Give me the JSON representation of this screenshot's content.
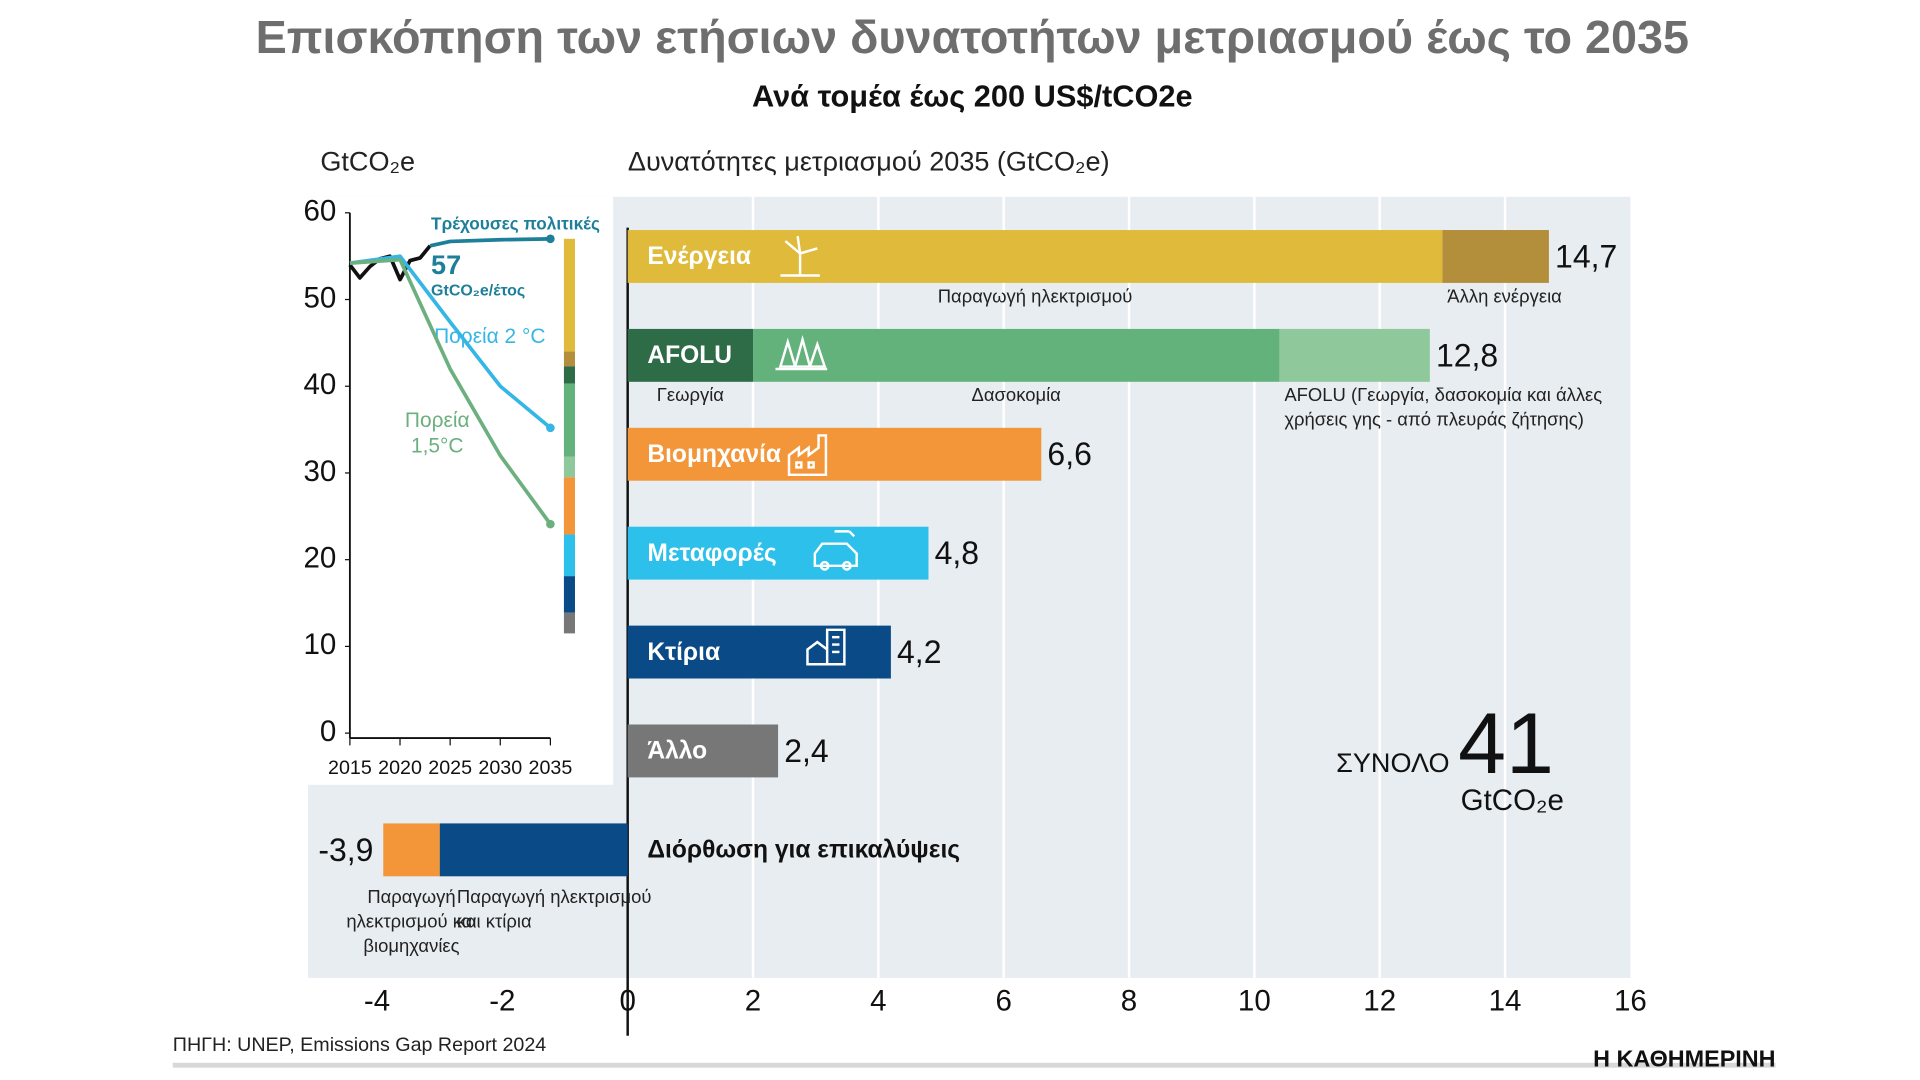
{
  "title": "Επισκόπηση των ετήσιων δυνατοτήτων μετριασμού έως το 2035",
  "subtitle": "Ανά τομέα έως 200 US$/tCO2e",
  "source": "ΠΗΓΗ: UNEP, Emissions Gap Report 2024",
  "brand": "Η ΚΑΘΗΜΕΡΙΝΗ",
  "chart_data": [
    {
      "type": "line",
      "y_label": "GtCO₂e",
      "xlim": [
        2015,
        2035
      ],
      "xticks": [
        2015,
        2020,
        2025,
        2030,
        2035
      ],
      "ylim": [
        0,
        60
      ],
      "yticks": [
        0,
        10,
        20,
        30,
        40,
        50,
        60
      ],
      "annotation_value": 57,
      "annotation_unit": "GtCO₂e/έτος",
      "series": [
        {
          "color": "#111111",
          "x": [
            2015,
            2016,
            2017,
            2018,
            2019,
            2020,
            2021,
            2022,
            2023
          ],
          "values": [
            54,
            52.5,
            53.8,
            54.7,
            55,
            52.3,
            54.5,
            54.8,
            56.2
          ]
        },
        {
          "name": "Τρέχουσες πολιτικές",
          "color": "#1d7f99",
          "x": [
            2023,
            2025,
            2030,
            2035
          ],
          "values": [
            56.2,
            56.7,
            56.9,
            57
          ]
        },
        {
          "name": "Πορεία 2 °C",
          "color": "#35b6e6",
          "x": [
            2015,
            2020,
            2025,
            2030,
            2035
          ],
          "values": [
            54.2,
            55,
            47.4,
            40,
            35.2
          ]
        },
        {
          "name": "Πορεία 1,5°C",
          "color": "#6bb07e",
          "x": [
            2015,
            2020,
            2025,
            2030,
            2035
          ],
          "values": [
            54.2,
            54.6,
            42,
            32,
            24.1
          ]
        }
      ]
    },
    {
      "type": "stacked_bar",
      "x_label": "Δυνατότητες μετριασμού 2035 (GtCO₂e)",
      "xlim": [
        -5.1,
        16
      ],
      "xticks": [
        -4,
        -2,
        0,
        2,
        4,
        6,
        8,
        10,
        12,
        14,
        16
      ],
      "grid": true,
      "bars": [
        {
          "label": "Ενέργεια",
          "value": 14.7,
          "value_label": "14,7",
          "segments": [
            {
              "name": "Παραγωγή ηλεκτρισμού",
              "value": 13,
              "color": "#e0bb3b"
            },
            {
              "name": "Άλλη ενέργεια",
              "value": 1.7,
              "color": "#b38f3b"
            }
          ]
        },
        {
          "label": "AFOLU",
          "value": 12.8,
          "value_label": "12,8",
          "segments": [
            {
              "name": "Γεωργία",
              "value": 2,
              "color": "#2e6b47"
            },
            {
              "name": "Δασοκομία",
              "value": 8.4,
              "color": "#63b27c"
            },
            {
              "name": "AFOLU (Γεωργία, δασοκομία και άλλες χρήσεις γης - από πλευράς ζήτησης)",
              "value": 2.4,
              "color": "#8ec89b"
            }
          ]
        },
        {
          "label": "Βιομηχανία",
          "value": 6.6,
          "value_label": "6,6",
          "color": "#f39639"
        },
        {
          "label": "Μεταφορές",
          "value": 4.8,
          "value_label": "4,8",
          "color": "#2cc0ea"
        },
        {
          "label": "Κτίρια",
          "value": 4.2,
          "value_label": "4,2",
          "color": "#0a4a86"
        },
        {
          "label": "Άλλο",
          "value": 2.4,
          "value_label": "2,4",
          "color": "#777777"
        },
        {
          "label": "Διόρθωση για επικαλύψεις",
          "value": -3.9,
          "value_label": "-3,9",
          "segments": [
            {
              "name": "Παραγωγή ηλεκτρισμού και κτίρια",
              "value": -3,
              "color": "#0a4a86"
            },
            {
              "name": "Παραγωγή ηλεκτρισμού και βιομηχανίες",
              "value": -0.9,
              "color": "#f39639"
            }
          ]
        }
      ],
      "total": {
        "label": "ΣΥΝΟΛΟ",
        "value": 41,
        "unit": "GtCO₂e"
      }
    }
  ]
}
